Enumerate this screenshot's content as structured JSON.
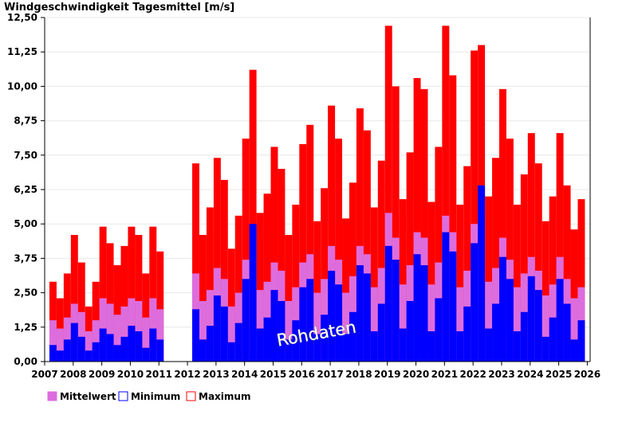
{
  "chart_data": {
    "type": "bar",
    "title": "Windgeschwindigkeit Tagesmittel [m/s]",
    "xlabel": "",
    "ylabel": "",
    "ylim": [
      0,
      12.5
    ],
    "yticks": [
      "0,00",
      "1,25",
      "2,50",
      "3,75",
      "5,00",
      "6,25",
      "7,50",
      "8,75",
      "10,00",
      "11,25",
      "12,50"
    ],
    "xlim": [
      2007.0,
      2026.1
    ],
    "xticks": [
      "2007",
      "2008",
      "2009",
      "2010",
      "2011",
      "2012",
      "2013",
      "2014",
      "2015",
      "2016",
      "2017",
      "2018",
      "2019",
      "2020",
      "2021",
      "2022",
      "2023",
      "2024",
      "2025",
      "2026"
    ],
    "grid": true,
    "legend_position": "bottom-left",
    "watermark": "Rohdaten",
    "data_gap": [
      "2010-12",
      "2012-03"
    ],
    "x": [
      "2007-03",
      "2007-06",
      "2007-09",
      "2007-12",
      "2008-03",
      "2008-06",
      "2008-09",
      "2008-12",
      "2009-03",
      "2009-06",
      "2009-09",
      "2009-12",
      "2010-03",
      "2010-06",
      "2010-09",
      "2010-12",
      "2012-03",
      "2012-06",
      "2012-09",
      "2012-12",
      "2013-03",
      "2013-06",
      "2013-09",
      "2013-12",
      "2014-03",
      "2014-06",
      "2014-09",
      "2014-12",
      "2015-03",
      "2015-06",
      "2015-09",
      "2015-12",
      "2016-03",
      "2016-06",
      "2016-09",
      "2016-12",
      "2017-03",
      "2017-06",
      "2017-09",
      "2017-12",
      "2018-03",
      "2018-06",
      "2018-09",
      "2018-12",
      "2019-03",
      "2019-06",
      "2019-09",
      "2019-12",
      "2020-03",
      "2020-06",
      "2020-09",
      "2020-12",
      "2021-03",
      "2021-06",
      "2021-09",
      "2021-12",
      "2022-03",
      "2022-06",
      "2022-09",
      "2022-12",
      "2023-03",
      "2023-06",
      "2023-09",
      "2023-12",
      "2024-03",
      "2024-06",
      "2024-09",
      "2024-12",
      "2025-03",
      "2025-06",
      "2025-09"
    ],
    "series": [
      {
        "name": "Maximum",
        "color": "#ff0000",
        "values": [
          2.9,
          2.3,
          3.2,
          4.6,
          3.6,
          2.0,
          2.9,
          4.9,
          4.3,
          3.5,
          4.2,
          4.9,
          4.6,
          3.2,
          4.9,
          4.0,
          7.2,
          4.6,
          5.6,
          7.4,
          6.6,
          4.1,
          5.3,
          8.1,
          10.6,
          5.4,
          6.1,
          7.8,
          7.0,
          4.6,
          5.7,
          7.9,
          8.6,
          5.1,
          6.3,
          9.3,
          8.1,
          5.2,
          6.5,
          9.2,
          8.4,
          5.6,
          7.3,
          12.2,
          10.0,
          5.9,
          7.6,
          10.3,
          9.9,
          5.8,
          7.8,
          12.2,
          10.4,
          5.7,
          7.1,
          11.3,
          11.5,
          6.0,
          7.4,
          9.9,
          8.1,
          5.7,
          6.8,
          8.3,
          7.2,
          5.1,
          6.0,
          8.3,
          6.4,
          4.8,
          5.9
        ]
      },
      {
        "name": "Mittelwert",
        "color": "#dd6ddd",
        "values": [
          1.5,
          1.2,
          1.6,
          2.1,
          1.8,
          1.1,
          1.5,
          2.3,
          2.1,
          1.7,
          2.0,
          2.3,
          2.2,
          1.6,
          2.3,
          1.9,
          3.2,
          2.2,
          2.6,
          3.4,
          3.0,
          2.0,
          2.5,
          3.7,
          4.6,
          2.6,
          2.9,
          3.6,
          3.3,
          2.2,
          2.7,
          3.6,
          3.9,
          2.5,
          3.0,
          4.2,
          3.7,
          2.5,
          3.1,
          4.2,
          3.9,
          2.7,
          3.4,
          5.4,
          4.5,
          2.8,
          3.5,
          4.7,
          4.5,
          2.8,
          3.6,
          5.3,
          4.7,
          2.7,
          3.3,
          5.0,
          5.2,
          2.9,
          3.4,
          4.5,
          3.7,
          2.7,
          3.2,
          3.8,
          3.3,
          2.4,
          2.8,
          3.8,
          3.0,
          2.3,
          2.7
        ]
      },
      {
        "name": "Minimum",
        "color": "#0000ff",
        "values": [
          0.6,
          0.4,
          0.8,
          1.4,
          0.9,
          0.4,
          0.7,
          1.2,
          1.0,
          0.6,
          0.9,
          1.3,
          1.1,
          0.5,
          1.2,
          0.8,
          1.9,
          0.8,
          1.3,
          2.4,
          2.0,
          0.7,
          1.4,
          3.0,
          5.0,
          1.2,
          1.6,
          2.6,
          2.2,
          0.8,
          1.5,
          2.7,
          3.0,
          1.0,
          1.7,
          3.3,
          2.8,
          1.0,
          1.8,
          3.5,
          3.2,
          1.1,
          2.1,
          4.2,
          3.7,
          1.2,
          2.2,
          3.9,
          3.5,
          1.1,
          2.3,
          4.7,
          4.0,
          1.1,
          2.0,
          4.3,
          6.4,
          1.2,
          2.1,
          3.8,
          3.0,
          1.1,
          1.8,
          3.1,
          2.6,
          0.9,
          1.6,
          3.0,
          2.1,
          0.8,
          1.5
        ]
      }
    ]
  }
}
